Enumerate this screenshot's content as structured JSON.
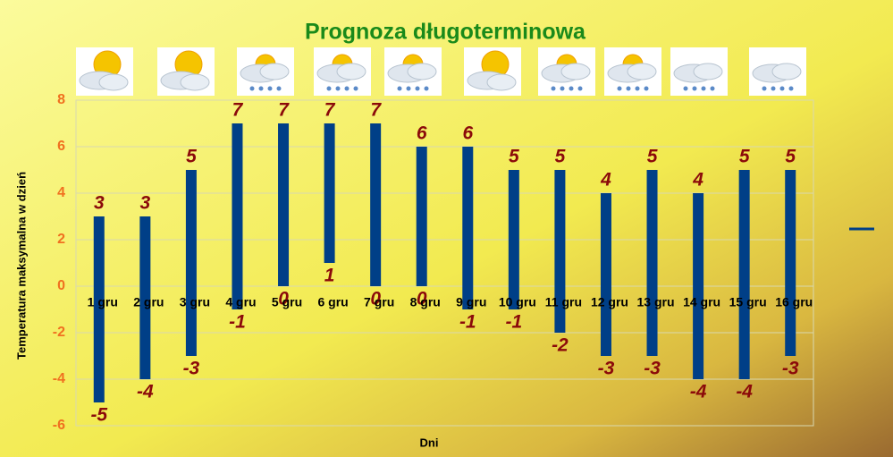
{
  "chart_data": {
    "type": "range-bar",
    "title": "Prognoza długoterminowa",
    "x_label": "Dni",
    "y_label": "Temperatura maksymalna w dzień",
    "categories": [
      "1 gru",
      "2 gru",
      "3 gru",
      "4 gru",
      "5 gru",
      "6 gru",
      "7 gru",
      "8 gru",
      "9 gru",
      "10 gru",
      "11 gru",
      "12 gru",
      "13 gru",
      "14 gru",
      "15 gru",
      "16 gru"
    ],
    "high": [
      3,
      3,
      5,
      7,
      7,
      7,
      7,
      6,
      6,
      5,
      5,
      4,
      5,
      4,
      5,
      5
    ],
    "low": [
      -5,
      -4,
      -3,
      -1,
      0,
      1,
      0,
      0,
      -1,
      -1,
      -2,
      -3,
      -3,
      -4,
      -4,
      -3
    ],
    "color": "#003f87",
    "ylim": [
      -6,
      8
    ],
    "yticks": [
      -6,
      -4,
      -2,
      0,
      2,
      4,
      6,
      8
    ],
    "grid": true
  }
}
